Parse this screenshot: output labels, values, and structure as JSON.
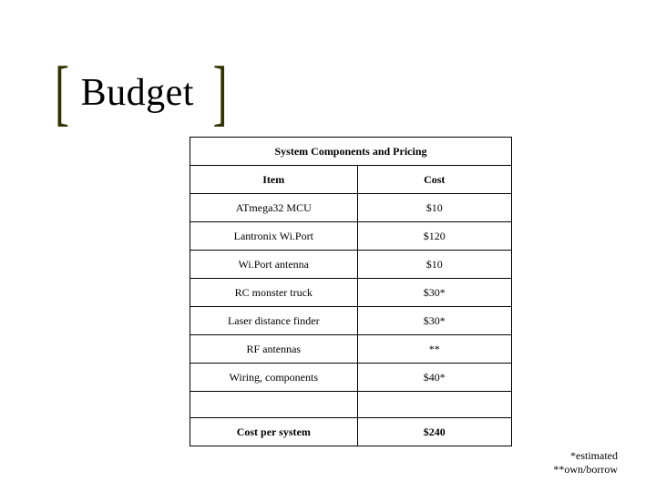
{
  "title": "Budget",
  "table": {
    "caption": "System Components and Pricing",
    "columns": [
      "Item",
      "Cost"
    ],
    "rows": [
      [
        "ATmega32 MCU",
        "$10"
      ],
      [
        "Lantronix Wi.Port",
        "$120"
      ],
      [
        "Wi.Port antenna",
        "$10"
      ],
      [
        "RC monster truck",
        "$30*"
      ],
      [
        "Laser distance finder",
        "$30*"
      ],
      [
        "RF antennas",
        "**"
      ],
      [
        "Wiring, components",
        "$40*"
      ]
    ],
    "total_label": "Cost per system",
    "total_value": "$240",
    "column_widths_pct": [
      52,
      48
    ],
    "border_color": "#000000",
    "font_size_pt": 9
  },
  "footnotes": {
    "line1": "*estimated",
    "line2": "**own/borrow"
  },
  "colors": {
    "background": "#ffffff",
    "text": "#000000",
    "bracket": "#333300"
  },
  "title_fontsize_pt": 32
}
